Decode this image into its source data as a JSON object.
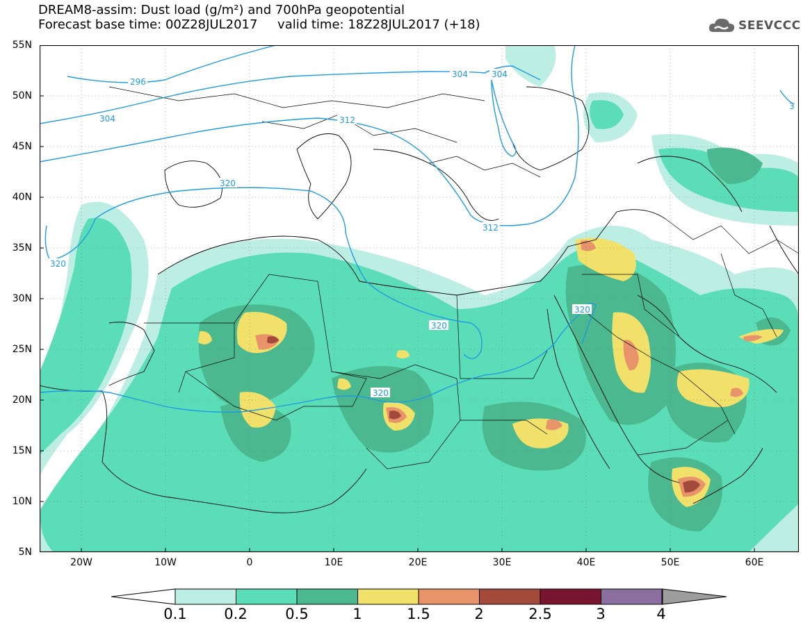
{
  "header": {
    "title_line1": "DREAM8-assim: Dust load (g/m²) and 700hPa geopotential",
    "title_line2": "Forecast base time: 00Z28JUL2017     valid time: 18Z28JUL2017 (+18)",
    "logo_text": "SEEVCCC"
  },
  "axes": {
    "lat_labels": [
      "55N",
      "50N",
      "45N",
      "40N",
      "35N",
      "30N",
      "25N",
      "20N",
      "15N",
      "10N",
      "5N"
    ],
    "lon_labels": [
      "20W",
      "10W",
      "0",
      "10E",
      "20E",
      "30E",
      "40E",
      "50E",
      "60E"
    ]
  },
  "contours": {
    "labels": [
      "296",
      "304",
      "304",
      "304",
      "312",
      "312",
      "320",
      "320",
      "320",
      "320",
      "320",
      "3"
    ]
  },
  "colorbar": {
    "levels": [
      "0.1",
      "0.2",
      "0.5",
      "1",
      "1.5",
      "2",
      "2.5",
      "3",
      "4"
    ],
    "colors": [
      "#bdeee3",
      "#5bddb8",
      "#4cb88f",
      "#f1e06a",
      "#e8936a",
      "#a34a3a",
      "#7a1530",
      "#8c6fa0",
      "#9e9e9e"
    ]
  },
  "palette": {
    "c01": "#bdeee3",
    "c02": "#5bddb8",
    "c05": "#4cb88f",
    "c1": "#f1e06a",
    "c15": "#e8936a",
    "c2": "#a34a3a",
    "contour": "#1e9be0"
  }
}
